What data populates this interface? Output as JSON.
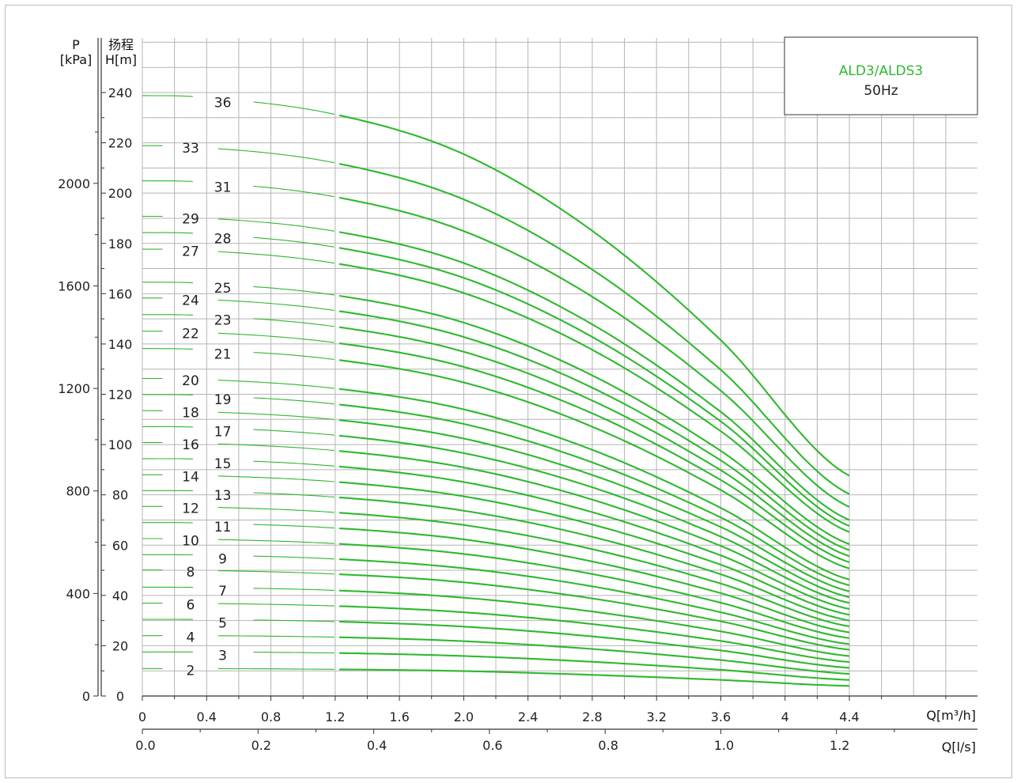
{
  "chart_data": {
    "type": "line",
    "legend_box": {
      "title": "ALD3/ALDS3",
      "subtitle": "50Hz",
      "placement": "top-right"
    },
    "left_axis_title": {
      "line1": "P",
      "line2": "[kPa]"
    },
    "y_axis_title": {
      "line1": "扬程",
      "line2": "H[m]"
    },
    "x_axis_title_top": "Q[m³/h]",
    "x_axis_title_bottom": "Q[l/s]",
    "xlim": [
      0,
      4.4
    ],
    "ylim": [
      0,
      240
    ],
    "x_ticks": [
      "0",
      "0.4",
      "0.8",
      "1.2",
      "1.6",
      "2.0",
      "2.4",
      "2.8",
      "3.2",
      "3.6",
      "4",
      "4.4"
    ],
    "x_tick_values": [
      0,
      0.4,
      0.8,
      1.2,
      1.6,
      2.0,
      2.4,
      2.8,
      3.2,
      3.6,
      4.0,
      4.4
    ],
    "x2_ticks": [
      "0.0",
      "0.2",
      "0.4",
      "0.6",
      "0.8",
      "1.0",
      "1.2"
    ],
    "x2_tick_values": [
      0.0,
      0.2,
      0.4,
      0.6,
      0.8,
      1.0,
      1.2
    ],
    "y_ticks": [
      "0",
      "20",
      "40",
      "60",
      "80",
      "100",
      "120",
      "140",
      "160",
      "180",
      "200",
      "220",
      "240"
    ],
    "y_tick_values": [
      0,
      20,
      40,
      60,
      80,
      100,
      120,
      140,
      160,
      180,
      200,
      220,
      240
    ],
    "p_ticks": [
      "0",
      "400",
      "800",
      "1200",
      "1600",
      "2000"
    ],
    "p_tick_values": [
      0,
      400,
      800,
      1200,
      1600,
      2000
    ],
    "grid": true,
    "curve_x": [
      0,
      0.4,
      1.2,
      2.0,
      2.8,
      3.6,
      4.4
    ],
    "series": [
      {
        "name": "2",
        "values": [
          10.9,
          10.9,
          10.6,
          9.9,
          8.4,
          6.4,
          4.0
        ]
      },
      {
        "name": "3",
        "values": [
          17.5,
          17.5,
          17.1,
          15.9,
          13.6,
          10.4,
          6.4
        ]
      },
      {
        "name": "4",
        "values": [
          24.0,
          24.0,
          23.4,
          21.8,
          18.7,
          14.3,
          8.8
        ]
      },
      {
        "name": "5",
        "values": [
          30.5,
          30.4,
          29.6,
          27.6,
          23.7,
          18.1,
          11.2
        ]
      },
      {
        "name": "6",
        "values": [
          36.9,
          36.8,
          35.8,
          33.3,
          28.6,
          21.9,
          13.5
        ]
      },
      {
        "name": "7",
        "values": [
          43.3,
          43.1,
          42.0,
          39.1,
          33.6,
          25.7,
          15.9
        ]
      },
      {
        "name": "8",
        "values": [
          50.1,
          49.9,
          48.5,
          45.2,
          38.8,
          29.7,
          18.4
        ]
      },
      {
        "name": "9",
        "values": [
          56.2,
          56.0,
          54.5,
          50.8,
          43.6,
          33.3,
          20.6
        ]
      },
      {
        "name": "10",
        "values": [
          62.6,
          62.3,
          60.6,
          56.5,
          48.5,
          37.1,
          23.0
        ]
      },
      {
        "name": "11",
        "values": [
          69.0,
          68.7,
          66.8,
          62.3,
          53.5,
          40.9,
          25.3
        ]
      },
      {
        "name": "12",
        "values": [
          75.4,
          75.1,
          73.0,
          68.0,
          58.4,
          44.7,
          27.7
        ]
      },
      {
        "name": "13",
        "values": [
          81.7,
          81.4,
          79.1,
          73.7,
          63.3,
          48.4,
          30.0
        ]
      },
      {
        "name": "14",
        "values": [
          88.0,
          87.6,
          85.2,
          79.4,
          68.2,
          52.2,
          32.3
        ]
      },
      {
        "name": "15",
        "values": [
          94.4,
          94.0,
          91.4,
          85.1,
          73.1,
          55.9,
          34.6
        ]
      },
      {
        "name": "16",
        "values": [
          100.8,
          100.4,
          97.6,
          90.9,
          78.1,
          59.7,
          37.0
        ]
      },
      {
        "name": "17",
        "values": [
          107.1,
          106.7,
          103.7,
          96.6,
          83.0,
          63.4,
          39.3
        ]
      },
      {
        "name": "18",
        "values": [
          113.5,
          113.0,
          109.9,
          102.4,
          87.9,
          67.2,
          41.6
        ]
      },
      {
        "name": "19",
        "values": [
          119.9,
          119.4,
          116.1,
          108.2,
          92.9,
          71.0,
          44.0
        ]
      },
      {
        "name": "20",
        "values": [
          126.3,
          125.8,
          122.3,
          114.0,
          97.9,
          74.8,
          46.3
        ]
      },
      {
        "name": "21",
        "values": [
          138.2,
          137.6,
          133.8,
          124.7,
          107.1,
          81.9,
          50.7
        ]
      },
      {
        "name": "22",
        "values": [
          145.1,
          144.5,
          140.5,
          130.9,
          112.4,
          85.9,
          53.2
        ]
      },
      {
        "name": "23",
        "values": [
          151.7,
          151.1,
          146.9,
          136.9,
          117.5,
          89.8,
          55.6
        ]
      },
      {
        "name": "24",
        "values": [
          158.3,
          157.7,
          153.3,
          142.8,
          122.6,
          93.7,
          58.0
        ]
      },
      {
        "name": "25",
        "values": [
          164.6,
          163.9,
          159.4,
          148.5,
          127.5,
          97.5,
          60.4
        ]
      },
      {
        "name": "27",
        "values": [
          177.7,
          177.0,
          172.1,
          160.3,
          137.7,
          105.3,
          65.2
        ]
      },
      {
        "name": "28",
        "values": [
          184.3,
          183.6,
          178.5,
          166.3,
          142.8,
          109.2,
          67.6
        ]
      },
      {
        "name": "29",
        "values": [
          190.8,
          190.0,
          184.8,
          172.2,
          147.8,
          113.0,
          70.0
        ]
      },
      {
        "name": "31",
        "values": [
          204.9,
          204.1,
          198.5,
          184.9,
          158.8,
          121.4,
          75.2
        ]
      },
      {
        "name": "33",
        "values": [
          218.9,
          218.0,
          212.0,
          197.5,
          169.6,
          129.7,
          80.3
        ]
      },
      {
        "name": "36",
        "values": [
          238.8,
          237.8,
          231.3,
          215.5,
          185.0,
          141.5,
          87.6
        ]
      }
    ]
  }
}
